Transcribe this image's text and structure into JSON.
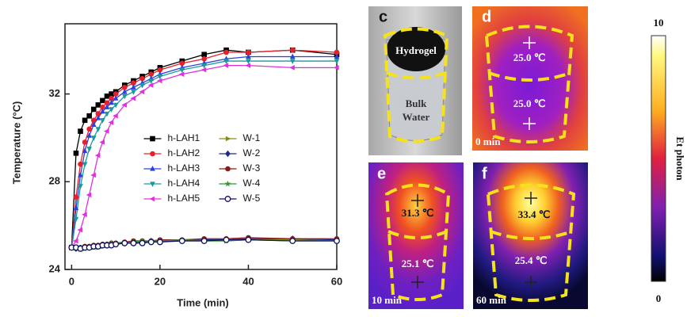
{
  "chart_data": {
    "type": "line",
    "xlabel": "Time (min)",
    "ylabel": "Temperature (°C)",
    "x": [
      0,
      1,
      2,
      3,
      4,
      5,
      6,
      7,
      8,
      9,
      10,
      12,
      14,
      16,
      18,
      20,
      25,
      30,
      35,
      40,
      50,
      60
    ],
    "xlim": [
      -1.5,
      60
    ],
    "xticks": [
      0,
      20,
      40,
      60
    ],
    "ylim": [
      24,
      35.2
    ],
    "yticks": [
      24,
      28,
      32
    ],
    "legend": "center",
    "series": [
      {
        "name": "h-LAH1",
        "color": "#000000",
        "marker": "square",
        "values": [
          25,
          29.3,
          30.3,
          30.8,
          31.0,
          31.3,
          31.5,
          31.7,
          31.9,
          32.0,
          32.1,
          32.4,
          32.6,
          32.8,
          33.0,
          33.2,
          33.5,
          33.8,
          34.0,
          33.9,
          34.0,
          33.8
        ]
      },
      {
        "name": "h-LAH2",
        "color": "#e8202a",
        "marker": "circle",
        "values": [
          25,
          27.3,
          28.8,
          29.8,
          30.4,
          30.8,
          31.1,
          31.4,
          31.6,
          31.8,
          32.0,
          32.3,
          32.5,
          32.7,
          32.9,
          33.1,
          33.4,
          33.6,
          33.9,
          33.9,
          34.0,
          33.9
        ]
      },
      {
        "name": "h-LAH3",
        "color": "#2a40e0",
        "marker": "triangle-up",
        "values": [
          25,
          26.8,
          28.3,
          29.4,
          30.1,
          30.6,
          30.9,
          31.2,
          31.4,
          31.6,
          31.8,
          32.1,
          32.3,
          32.5,
          32.7,
          32.9,
          33.2,
          33.4,
          33.6,
          33.7,
          33.7,
          33.7
        ]
      },
      {
        "name": "h-LAH4",
        "color": "#1a9a9a",
        "marker": "triangle-down",
        "values": [
          25,
          26.3,
          27.8,
          28.8,
          29.5,
          30.0,
          30.4,
          30.8,
          31.1,
          31.3,
          31.5,
          31.9,
          32.1,
          32.4,
          32.6,
          32.8,
          33.1,
          33.3,
          33.5,
          33.5,
          33.5,
          33.5
        ]
      },
      {
        "name": "h-LAH5",
        "color": "#e030e0",
        "marker": "triangle-left",
        "values": [
          25,
          25.3,
          25.8,
          26.5,
          27.4,
          28.3,
          29.2,
          29.8,
          30.3,
          30.7,
          31.0,
          31.5,
          31.8,
          32.1,
          32.4,
          32.6,
          32.9,
          33.1,
          33.3,
          33.3,
          33.2,
          33.2
        ]
      },
      {
        "name": "W-1",
        "color": "#8a8a10",
        "marker": "triangle-right",
        "values": [
          25,
          25,
          24.95,
          24.95,
          25,
          25,
          25,
          25.05,
          25.1,
          25.1,
          25.15,
          25.2,
          25.2,
          25.25,
          25.25,
          25.3,
          25.3,
          25.3,
          25.3,
          25.35,
          25.35,
          25.3
        ]
      },
      {
        "name": "W-2",
        "color": "#1a2a8a",
        "marker": "diamond",
        "values": [
          25,
          24.95,
          24.95,
          25,
          25,
          25.05,
          25.05,
          25.1,
          25.1,
          25.15,
          25.15,
          25.2,
          25.2,
          25.25,
          25.3,
          25.3,
          25.3,
          25.35,
          25.35,
          25.4,
          25.4,
          25.35
        ]
      },
      {
        "name": "W-3",
        "color": "#8a1a1a",
        "marker": "circle",
        "values": [
          25,
          25,
          25,
          25.05,
          25.05,
          25.1,
          25.1,
          25.15,
          25.15,
          25.2,
          25.2,
          25.25,
          25.3,
          25.3,
          25.3,
          25.35,
          25.35,
          25.4,
          25.4,
          25.45,
          25.4,
          25.4
        ]
      },
      {
        "name": "W-4",
        "color": "#2a9a2a",
        "marker": "star",
        "values": [
          25,
          24.95,
          24.9,
          24.95,
          25,
          25,
          25.05,
          25.1,
          25.15,
          25.2,
          25.2,
          25.2,
          25.25,
          25.3,
          25.3,
          25.3,
          25.35,
          25.3,
          25.3,
          25.35,
          25.3,
          25.3
        ]
      },
      {
        "name": "W-5",
        "color": "#101060",
        "marker": "circle-open",
        "values": [
          25,
          25,
          24.95,
          25,
          25,
          25.05,
          25.05,
          25.1,
          25.1,
          25.1,
          25.15,
          25.2,
          25.2,
          25.2,
          25.25,
          25.25,
          25.3,
          25.3,
          25.35,
          25.35,
          25.3,
          25.3
        ]
      }
    ]
  },
  "panels": [
    {
      "label": "c",
      "top_text": "Hydrogel",
      "bottom_text": [
        "Bulk",
        "Water"
      ]
    },
    {
      "label": "d",
      "top_temp": "25.0 ℃",
      "bottom_temp": "25.0 ℃",
      "time": "0 min"
    },
    {
      "label": "e",
      "top_temp": "31.3 ℃",
      "bottom_temp": "25.1 ℃",
      "time": "10 min"
    },
    {
      "label": "f",
      "top_temp": "33.4 ℃",
      "bottom_temp": "25.4 ℃",
      "time": "60 min"
    }
  ],
  "colorbar": {
    "max": 10,
    "min": 0,
    "title": "Et photon"
  }
}
